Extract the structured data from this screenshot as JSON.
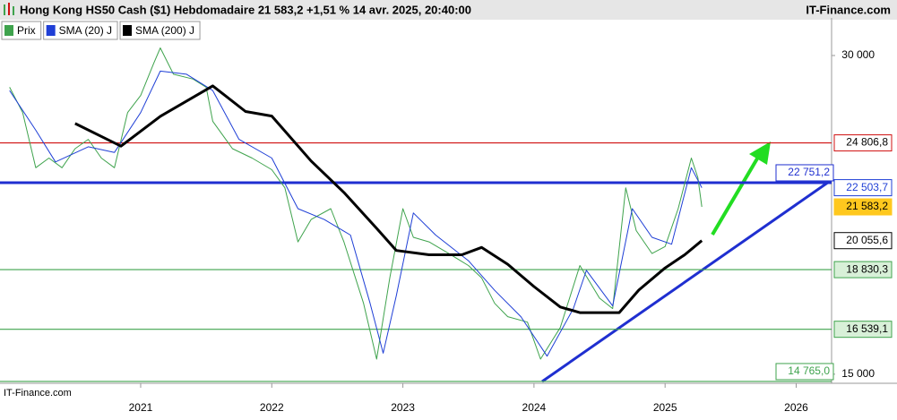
{
  "chart_data": {
    "type": "line",
    "title": "Hong Kong HS50 Cash ($1) Hebdomadaire 21 583,2 +1,51 % 14 avr. 2025, 20:40:00",
    "brand": "IT-Finance.com",
    "watermark": "IT-Finance.com",
    "log_scale": true,
    "xlim": [
      2019.927,
      2026.27
    ],
    "xticks": [
      2021,
      2022,
      2023,
      2024,
      2025,
      2026
    ],
    "ylim": [
      14706,
      32556
    ],
    "yticks": [
      {
        "value": 30000,
        "label": "30 000"
      },
      {
        "value": 15000,
        "label": "15 000"
      }
    ],
    "series": [
      {
        "name": "Prix",
        "color": "#3fa34d",
        "width": 1,
        "x": [
          2020.0,
          2020.1,
          2020.2,
          2020.3,
          2020.4,
          2020.5,
          2020.6,
          2020.7,
          2020.8,
          2020.9,
          2021.0,
          2021.1,
          2021.15,
          2021.25,
          2021.4,
          2021.5,
          2021.55,
          2021.7,
          2021.85,
          2022.0,
          2022.1,
          2022.2,
          2022.3,
          2022.45,
          2022.55,
          2022.7,
          2022.8,
          2022.9,
          2023.0,
          2023.08,
          2023.2,
          2023.35,
          2023.5,
          2023.6,
          2023.7,
          2023.8,
          2023.95,
          2024.05,
          2024.2,
          2024.35,
          2024.5,
          2024.6,
          2024.7,
          2024.78,
          2024.9,
          2025.0,
          2025.1,
          2025.2,
          2025.25,
          2025.28
        ],
        "values": [
          28000,
          26500,
          23500,
          24000,
          23500,
          24500,
          25000,
          24000,
          23500,
          26500,
          27500,
          29500,
          30500,
          28800,
          28500,
          28000,
          26000,
          24500,
          24000,
          23400,
          22500,
          20000,
          21000,
          21500,
          20000,
          17500,
          15500,
          18500,
          21500,
          20200,
          20000,
          19500,
          19000,
          18500,
          17500,
          17000,
          16800,
          15500,
          16600,
          19000,
          17700,
          17300,
          22500,
          20500,
          19500,
          19800,
          21500,
          24000,
          23000,
          21583.2
        ]
      },
      {
        "name": "SMA (20) J",
        "color": "#1f3fd6",
        "width": 1,
        "x": [
          2020.0,
          2020.2,
          2020.35,
          2020.6,
          2020.8,
          2021.0,
          2021.15,
          2021.35,
          2021.55,
          2021.75,
          2022.0,
          2022.2,
          2022.4,
          2022.6,
          2022.75,
          2022.85,
          2022.95,
          2023.08,
          2023.25,
          2023.5,
          2023.7,
          2023.9,
          2024.1,
          2024.3,
          2024.4,
          2024.6,
          2024.75,
          2024.9,
          2025.05,
          2025.2,
          2025.28
        ],
        "values": [
          27800,
          25500,
          23800,
          24600,
          24300,
          26500,
          29000,
          28800,
          27800,
          25000,
          24000,
          21500,
          21000,
          20300,
          17500,
          15700,
          17800,
          21300,
          20300,
          19200,
          18000,
          17000,
          15600,
          17300,
          18800,
          17400,
          21500,
          20200,
          19900,
          23500,
          22503.7
        ]
      },
      {
        "name": "SMA (200) J",
        "color": "#000000",
        "width": 3,
        "x": [
          2020.5,
          2020.85,
          2021.15,
          2021.55,
          2021.8,
          2022.0,
          2022.3,
          2022.55,
          2022.8,
          2022.95,
          2023.2,
          2023.45,
          2023.6,
          2023.8,
          2024.0,
          2024.2,
          2024.35,
          2024.65,
          2024.8,
          2025.0,
          2025.15,
          2025.28
        ],
        "values": [
          25875,
          24630,
          26280,
          28080,
          26560,
          26300,
          23850,
          22270,
          20600,
          19630,
          19450,
          19450,
          19760,
          19050,
          18150,
          17360,
          17150,
          17150,
          18010,
          18900,
          19450,
          20055.6
        ]
      }
    ],
    "last_labels": [
      {
        "series": 1,
        "value": 22503.7,
        "label": "22 503,7"
      },
      {
        "series": 0,
        "value": 21583.2,
        "label": "21 583,2"
      },
      {
        "series": 2,
        "value": 20055.6,
        "label": "20 055,6"
      }
    ],
    "hlines": [
      {
        "value": 24806.8,
        "label": "24 806,8",
        "color": "#d01010"
      },
      {
        "value": 22751.2,
        "label": "22 751,2",
        "color": "#1f2fd0"
      },
      {
        "value": 18830.3,
        "label": "18 830,3",
        "color": "#3fa34d"
      },
      {
        "value": 16539.1,
        "label": "16 539,1",
        "color": "#3fa34d"
      },
      {
        "value": 14765.0,
        "label": "14 765,0",
        "color": "#3fa34d"
      }
    ]
  }
}
